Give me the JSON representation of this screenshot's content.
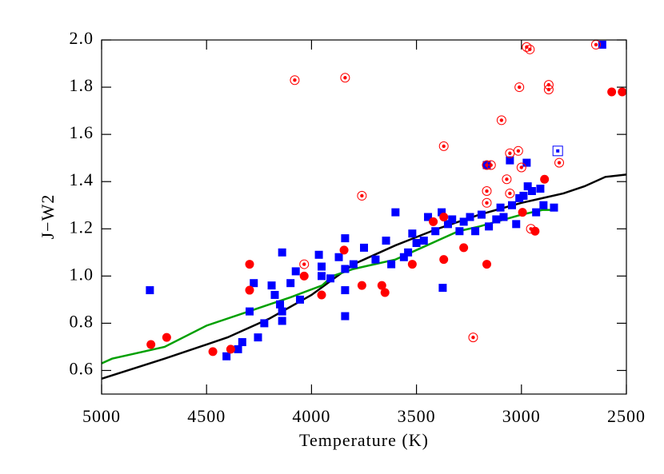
{
  "chart_data": {
    "type": "scatter",
    "x_label": "Temperature (K)",
    "y_label": "J−W2",
    "xlim": [
      5000,
      2500
    ],
    "ylim": [
      0.5,
      2.0
    ],
    "xticks": [
      5000,
      4500,
      4000,
      3500,
      3000,
      2500
    ],
    "yticks": [
      0.6,
      0.8,
      {
        "value": 1,
        "label": "1.0"
      },
      1.2,
      1.4,
      1.6,
      1.8,
      {
        "value": 2,
        "label": "2.0"
      }
    ],
    "series": [
      {
        "marker": "square",
        "color": "#0000ff",
        "x": [
          4770,
          4405,
          4350,
          4330,
          4295,
          4275,
          4255,
          4225,
          4190,
          4175,
          4150,
          4140,
          4140,
          4140,
          4100,
          4075,
          4055,
          3965,
          3952,
          3952,
          3910,
          3870,
          3840,
          3840,
          3840,
          3840,
          3800,
          3750,
          3695,
          3645,
          3620,
          3600,
          3560,
          3540,
          3520,
          3500,
          3465,
          3445,
          3410,
          3380,
          3375,
          3350,
          3330,
          3295,
          3275,
          3245,
          3220,
          3190,
          3165,
          3155,
          3120,
          3100,
          3085,
          3055,
          3045,
          3025,
          3010,
          2990,
          2975,
          2970,
          2950,
          2930,
          2910,
          2895,
          2845,
          2615
        ],
        "values": [
          0.94,
          0.66,
          0.69,
          0.72,
          0.85,
          0.97,
          0.74,
          0.8,
          0.96,
          0.92,
          0.88,
          0.85,
          0.81,
          1.1,
          0.97,
          1.02,
          0.9,
          1.09,
          1.04,
          1.0,
          0.99,
          1.08,
          1.16,
          1.03,
          0.94,
          0.83,
          1.05,
          1.12,
          1.07,
          1.15,
          1.05,
          1.27,
          1.08,
          1.1,
          1.18,
          1.14,
          1.15,
          1.25,
          1.19,
          1.27,
          0.95,
          1.22,
          1.24,
          1.19,
          1.23,
          1.25,
          1.19,
          1.26,
          1.47,
          1.21,
          1.24,
          1.29,
          1.25,
          1.49,
          1.3,
          1.22,
          1.33,
          1.34,
          1.48,
          1.38,
          1.36,
          1.27,
          1.37,
          1.3,
          1.29,
          1.98
        ]
      },
      {
        "marker": "circle",
        "color": "#ff0000",
        "x": [
          4765,
          4690,
          4470,
          4385,
          4295,
          4295,
          4035,
          3952,
          3845,
          3760,
          3665,
          3650,
          3520,
          3420,
          3370,
          3370,
          3275,
          3165,
          2995,
          2935,
          2890,
          2570,
          2520
        ],
        "values": [
          0.71,
          0.74,
          0.68,
          0.69,
          1.05,
          0.94,
          1.0,
          0.92,
          1.11,
          0.96,
          0.96,
          0.93,
          1.05,
          1.23,
          1.25,
          1.07,
          1.12,
          1.05,
          1.27,
          1.19,
          1.41,
          1.78,
          1.78
        ]
      },
      {
        "marker": "ring-dot",
        "color": "#ff0000",
        "x": [
          4080,
          3840,
          4035,
          3760,
          3370,
          3165,
          3145,
          3165,
          3165,
          3095,
          3070,
          3055,
          3055,
          3015,
          3010,
          3000,
          2975,
          2960,
          2955,
          2870,
          2870,
          2820,
          3230,
          2645
        ],
        "values": [
          1.83,
          1.84,
          1.05,
          1.34,
          1.55,
          1.47,
          1.47,
          1.36,
          1.31,
          1.66,
          1.41,
          1.52,
          1.35,
          1.53,
          1.8,
          1.46,
          1.97,
          1.96,
          1.2,
          1.81,
          1.79,
          1.48,
          0.74,
          1.98
        ]
      },
      {
        "marker": "box-dot",
        "color": "#0000ff",
        "x": [
          2827
        ],
        "values": [
          1.53
        ]
      },
      {
        "marker": "line",
        "color": "#000000",
        "x": [
          5000,
          4700,
          4400,
          4200,
          4000,
          3800,
          3600,
          3400,
          3200,
          3000,
          2900,
          2800,
          2700,
          2600,
          2500
        ],
        "values": [
          0.565,
          0.65,
          0.74,
          0.82,
          0.92,
          1.05,
          1.13,
          1.2,
          1.26,
          1.31,
          1.33,
          1.35,
          1.38,
          1.42,
          1.43
        ]
      },
      {
        "marker": "line",
        "color": "#00a000",
        "x": [
          5000,
          4950,
          4850,
          4700,
          4500,
          4300,
          4100,
          3950,
          3900,
          3800,
          3600,
          3450,
          3400,
          3300,
          3200,
          3000,
          2900,
          2860
        ],
        "values": [
          0.63,
          0.65,
          0.67,
          0.7,
          0.79,
          0.85,
          0.91,
          0.96,
          1.0,
          1.03,
          1.07,
          1.13,
          1.15,
          1.19,
          1.21,
          1.26,
          1.28,
          1.28
        ]
      }
    ]
  }
}
